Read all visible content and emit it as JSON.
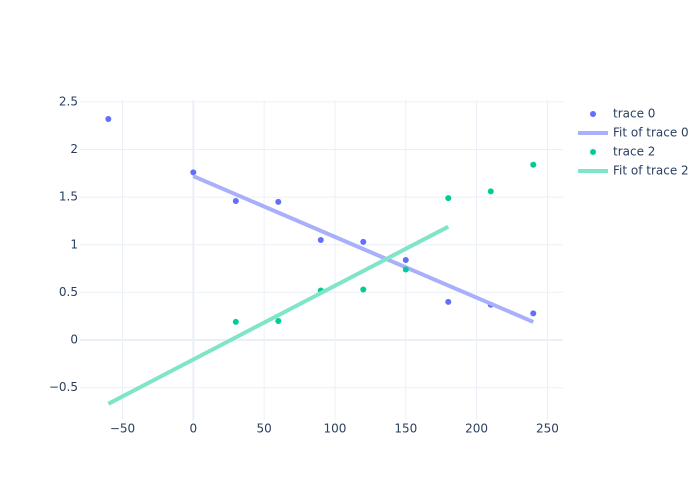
{
  "chart_data": {
    "type": "scatter",
    "xlim": [
      -80,
      261
    ],
    "ylim": [
      -0.84,
      2.52
    ],
    "xticks": [
      {
        "value": -50,
        "label": "−50"
      },
      0,
      50,
      100,
      150,
      200,
      250
    ],
    "yticks": [
      {
        "value": -0.5,
        "label": "−0.5"
      },
      0,
      0.5,
      1,
      1.5,
      2,
      2.5
    ],
    "grid": true,
    "legend": "right",
    "series": [
      {
        "name": "trace 0",
        "mode": "markers",
        "color": "#636efa",
        "x": [
          -60,
          0,
          30,
          60,
          90,
          120,
          150,
          180,
          210,
          240
        ],
        "values": [
          2.32,
          1.76,
          1.46,
          1.45,
          1.05,
          1.03,
          0.84,
          0.4,
          0.37,
          0.28
        ]
      },
      {
        "name": "Fit of trace 0",
        "mode": "lines",
        "color": "#a9affb",
        "x": [
          0,
          240
        ],
        "values": [
          1.72,
          0.19
        ]
      },
      {
        "name": "trace 2",
        "mode": "markers",
        "color": "#00cc96",
        "x": [
          30,
          60,
          90,
          120,
          150,
          180,
          210,
          240
        ],
        "values": [
          0.19,
          0.2,
          0.52,
          0.53,
          0.74,
          1.49,
          1.56,
          1.84
        ]
      },
      {
        "name": "Fit of trace 2",
        "mode": "lines",
        "color": "#7fe5c9",
        "x": [
          -60,
          180
        ],
        "values": [
          -0.67,
          1.19
        ]
      }
    ]
  }
}
